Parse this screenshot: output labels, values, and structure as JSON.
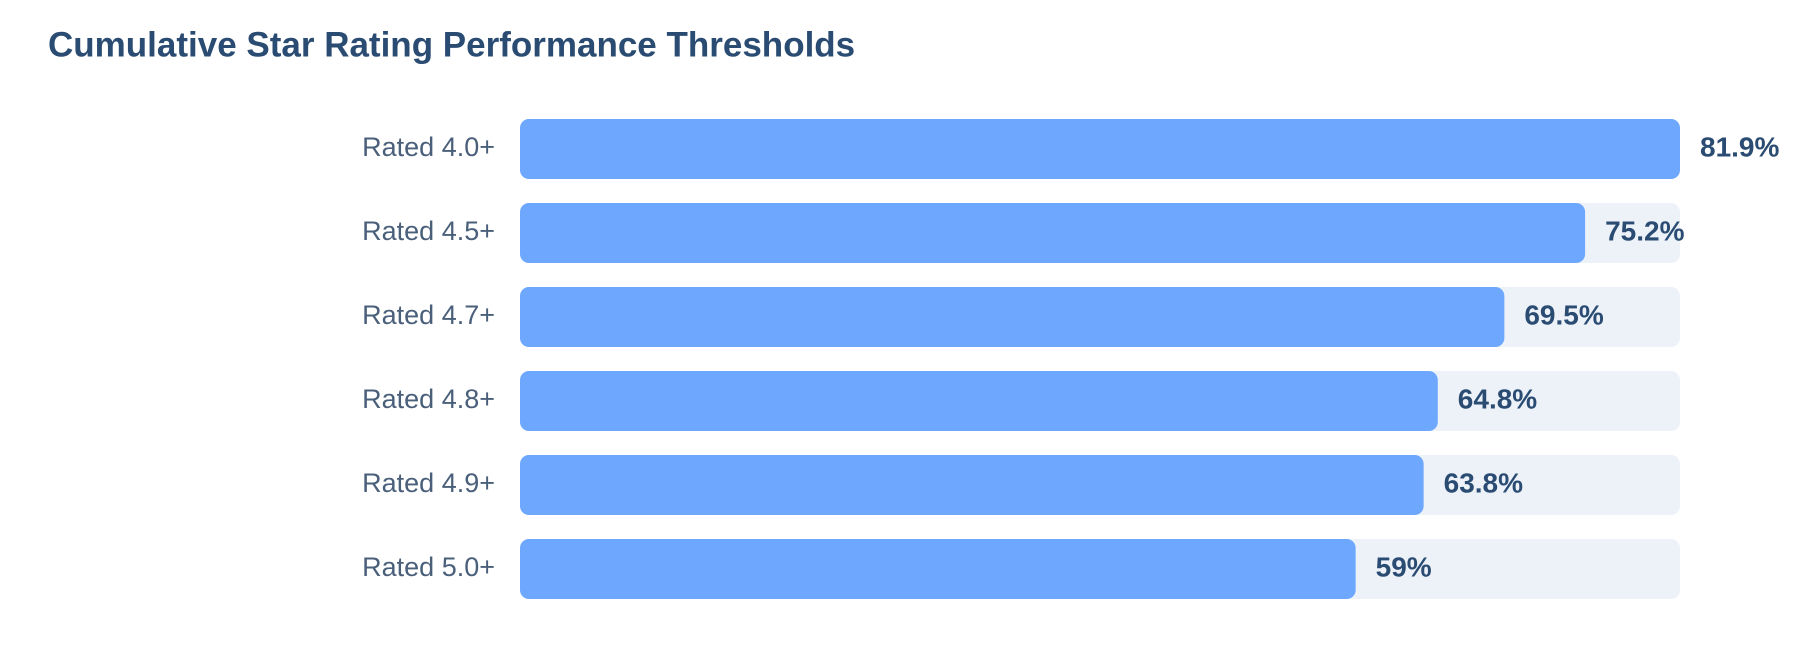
{
  "chart_data": {
    "type": "bar",
    "orientation": "horizontal",
    "title": "Cumulative Star Rating Performance Thresholds",
    "categories": [
      "Rated 4.0+",
      "Rated 4.5+",
      "Rated 4.7+",
      "Rated 4.8+",
      "Rated 4.9+",
      "Rated 5.0+"
    ],
    "values": [
      81.9,
      75.2,
      69.5,
      64.8,
      63.8,
      59
    ],
    "value_labels": [
      "81.9%",
      "75.2%",
      "69.5%",
      "64.8%",
      "63.8%",
      "59%"
    ],
    "color": "#6ea8fe"
  }
}
